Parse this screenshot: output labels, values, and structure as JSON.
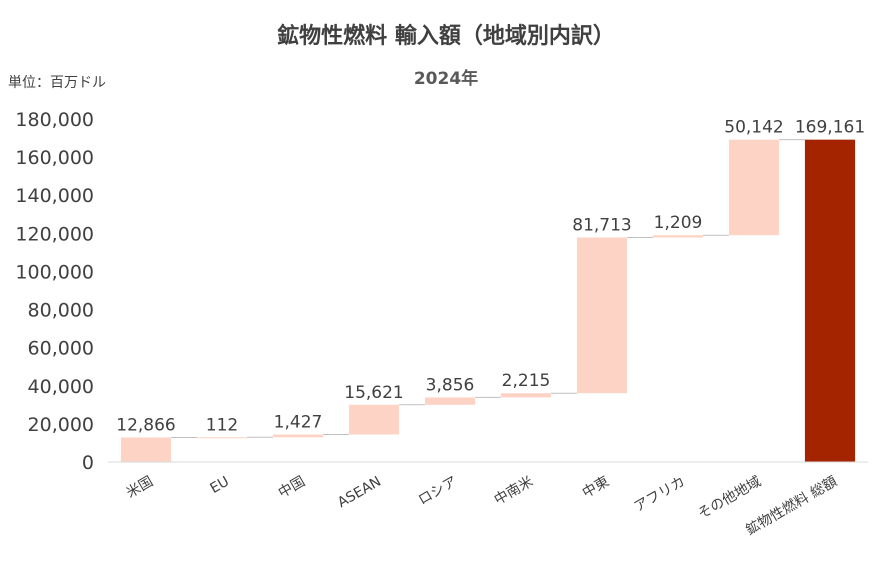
{
  "title": "鉱物性燃料 輸入額（地域別内訳）",
  "subtitle": "2024年",
  "unit_label": "単位：百万ドル",
  "colors": {
    "increment": "#FDD3C5",
    "total": "#A52400",
    "connector": "#BFBFBF",
    "axis": "#D9D9D9"
  },
  "chart_data": {
    "type": "bar",
    "subtype": "waterfall",
    "categories": [
      "米国",
      "EU",
      "中国",
      "ASEAN",
      "ロシア",
      "中南米",
      "中東",
      "アフリカ",
      "その他地域",
      "鉱物性燃料 総額"
    ],
    "values": [
      12866,
      112,
      1427,
      15621,
      3856,
      2215,
      81713,
      1209,
      50142,
      169161
    ],
    "data_labels": [
      "12,866",
      "112",
      "1,427",
      "15,621",
      "3,856",
      "2,215",
      "81,713",
      "1,209",
      "50,142",
      "169,161"
    ],
    "is_total": [
      false,
      false,
      false,
      false,
      false,
      false,
      false,
      false,
      false,
      true
    ],
    "ylim": [
      0,
      180000
    ],
    "y_ticks": [
      0,
      20000,
      40000,
      60000,
      80000,
      100000,
      120000,
      140000,
      160000,
      180000
    ],
    "y_tick_labels": [
      "0",
      "20,000",
      "40,000",
      "60,000",
      "80,000",
      "100,000",
      "120,000",
      "140,000",
      "160,000",
      "180,000"
    ],
    "grid": false,
    "legend": "none"
  }
}
